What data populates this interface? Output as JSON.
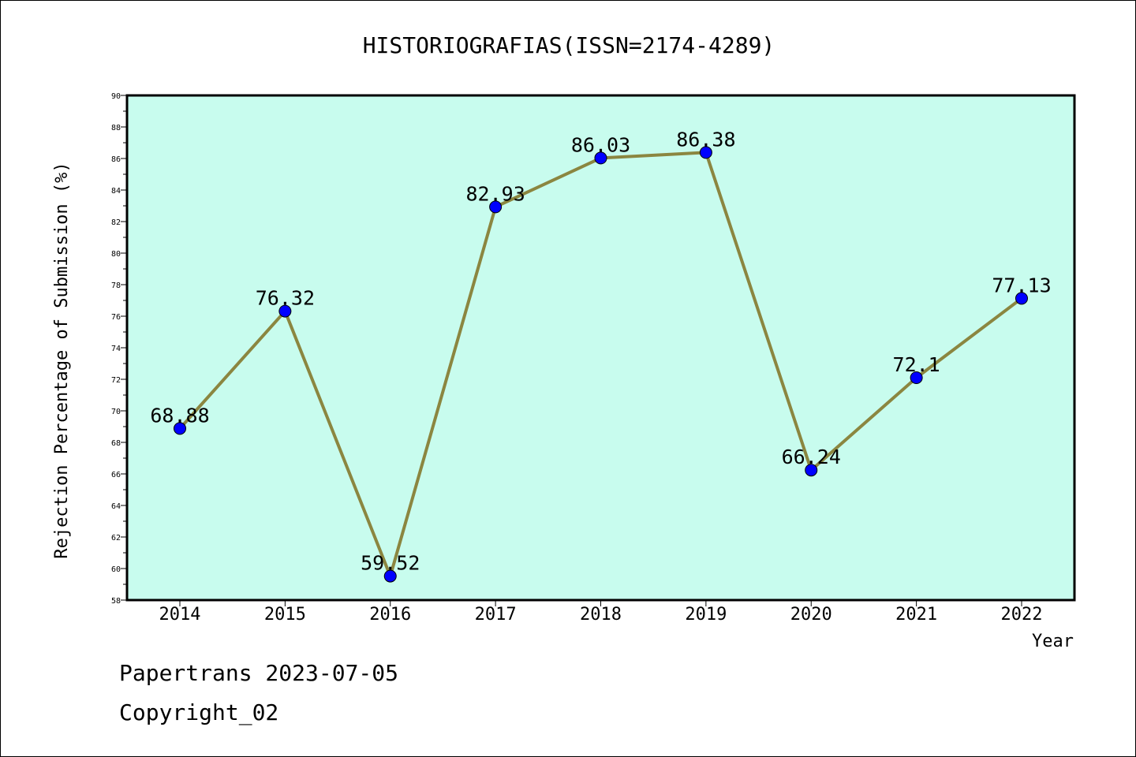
{
  "chart_data": {
    "type": "line",
    "title": "HISTORIOGRAFIAS(ISSN=2174-4289)",
    "xlabel": "Year",
    "ylabel": "Rejection Percentage of Submission (%)",
    "categories": [
      "2014",
      "2015",
      "2016",
      "2017",
      "2018",
      "2019",
      "2020",
      "2021",
      "2022"
    ],
    "series": [
      {
        "values": [
          68.88,
          76.32,
          59.52,
          82.93,
          86.03,
          86.38,
          66.24,
          72.1,
          77.13
        ],
        "labels": [
          "68.88",
          "76.32",
          "59.52",
          "82.93",
          "86.03",
          "86.38",
          "66.24",
          "72.1",
          "77.13"
        ]
      }
    ],
    "ylim": [
      58,
      90
    ],
    "yticks": [
      "58",
      "60",
      "62",
      "64",
      "66",
      "68",
      "70",
      "72",
      "74",
      "76",
      "78",
      "80",
      "82",
      "84",
      "86",
      "88",
      "90"
    ],
    "grid": false,
    "plot_background": "#c8fcee",
    "line_color": "#8b8640",
    "marker_color": "#0000ff"
  },
  "footer": {
    "line1": "Papertrans 2023-07-05",
    "line2": "Copyright_02"
  }
}
